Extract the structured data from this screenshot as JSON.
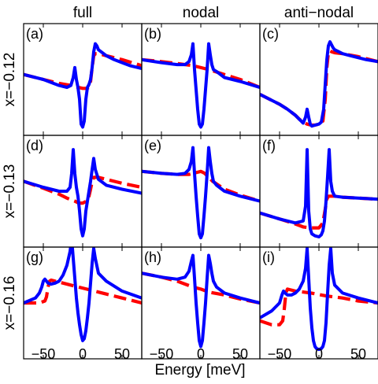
{
  "chart_data": {
    "type": "line",
    "xlabel": "Energy [meV]",
    "xlim": [
      -75,
      75
    ],
    "xticks": [
      -50,
      0,
      50
    ],
    "xtick_labels": [
      "−50",
      "0",
      "50"
    ],
    "columns": [
      "full",
      "nodal",
      "anti−nodal"
    ],
    "rows": [
      "x=−0.12",
      "x=−0.13",
      "x=−0.16"
    ],
    "series_styles": [
      {
        "key": "solid",
        "color": "#0000ff",
        "style": "solid"
      },
      {
        "key": "dashed",
        "color": "#ff0000",
        "style": "dashed"
      }
    ],
    "panels": [
      {
        "label": "(a)",
        "row": 0,
        "col": 0,
        "ylim": [
          0,
          1
        ],
        "solid": {
          "x": [
            -75,
            -50,
            -30,
            -20,
            -15,
            -12,
            -10,
            -8,
            -6,
            -4,
            -2,
            0,
            2,
            4,
            6,
            8,
            10,
            12,
            14,
            16,
            18,
            20,
            25,
            30,
            40,
            50,
            60,
            75
          ],
          "y": [
            0.55,
            0.5,
            0.44,
            0.42,
            0.44,
            0.52,
            0.62,
            0.5,
            0.42,
            0.3,
            0.05,
            0.02,
            0.08,
            0.3,
            0.42,
            0.45,
            0.5,
            0.62,
            0.78,
            0.86,
            0.84,
            0.8,
            0.77,
            0.74,
            0.7,
            0.67,
            0.64,
            0.61
          ]
        },
        "dashed": {
          "x": [
            -75,
            -50,
            -30,
            -15,
            -10,
            -5,
            0,
            5,
            8,
            10,
            12,
            14,
            16,
            20,
            30,
            50,
            75
          ],
          "y": [
            0.55,
            0.5,
            0.46,
            0.44,
            0.43,
            0.42,
            0.41,
            0.41,
            0.42,
            0.48,
            0.62,
            0.74,
            0.76,
            0.76,
            0.74,
            0.7,
            0.64
          ]
        }
      },
      {
        "label": "(b)",
        "row": 0,
        "col": 1,
        "ylim": [
          0,
          1
        ],
        "solid": {
          "x": [
            -75,
            -50,
            -30,
            -20,
            -15,
            -12,
            -10,
            -8,
            -6,
            -4,
            -2,
            0,
            2,
            4,
            6,
            8,
            10,
            12,
            14,
            16,
            20,
            30,
            50,
            75
          ],
          "y": [
            0.7,
            0.67,
            0.65,
            0.65,
            0.68,
            0.75,
            0.86,
            0.6,
            0.4,
            0.2,
            0.05,
            0.02,
            0.05,
            0.2,
            0.4,
            0.6,
            0.86,
            0.75,
            0.65,
            0.6,
            0.58,
            0.52,
            0.48,
            0.42
          ]
        },
        "dashed": {
          "x": [
            -75,
            -50,
            -30,
            -10,
            0,
            10,
            30,
            50,
            75
          ],
          "y": [
            0.7,
            0.68,
            0.66,
            0.64,
            0.62,
            0.6,
            0.55,
            0.5,
            0.42
          ]
        }
      },
      {
        "label": "(c)",
        "row": 0,
        "col": 2,
        "ylim": [
          0,
          1
        ],
        "solid": {
          "x": [
            -75,
            -50,
            -40,
            -30,
            -25,
            -20,
            -17,
            -15,
            -13,
            -11,
            -9,
            -5,
            0,
            3,
            6,
            8,
            10,
            12,
            14,
            16,
            18,
            20,
            25,
            30,
            40,
            50,
            60,
            75
          ],
          "y": [
            0.35,
            0.25,
            0.2,
            0.14,
            0.1,
            0.06,
            0.12,
            0.2,
            0.12,
            0.05,
            0.03,
            0.04,
            0.05,
            0.07,
            0.2,
            0.45,
            0.7,
            0.84,
            0.88,
            0.85,
            0.82,
            0.8,
            0.78,
            0.76,
            0.74,
            0.72,
            0.7,
            0.68
          ]
        },
        "dashed": {
          "x": [
            -75,
            -50,
            -40,
            -30,
            -25,
            -20,
            -15,
            -10,
            -5,
            0,
            5,
            8,
            10,
            12,
            14,
            16,
            20,
            30,
            50,
            75
          ],
          "y": [
            0.35,
            0.25,
            0.2,
            0.14,
            0.1,
            0.07,
            0.05,
            0.04,
            0.04,
            0.05,
            0.08,
            0.3,
            0.62,
            0.77,
            0.79,
            0.78,
            0.77,
            0.76,
            0.73,
            0.68
          ]
        }
      },
      {
        "label": "(d)",
        "row": 1,
        "col": 0,
        "ylim": [
          0,
          1
        ],
        "solid": {
          "x": [
            -75,
            -50,
            -30,
            -20,
            -16,
            -14,
            -12,
            -10,
            -8,
            -6,
            -4,
            -2,
            0,
            2,
            4,
            6,
            8,
            10,
            12,
            14,
            16,
            20,
            30,
            50,
            75
          ],
          "y": [
            0.6,
            0.54,
            0.5,
            0.5,
            0.54,
            0.68,
            0.92,
            0.68,
            0.54,
            0.45,
            0.3,
            0.12,
            0.05,
            0.12,
            0.3,
            0.4,
            0.5,
            0.6,
            0.72,
            0.83,
            0.72,
            0.62,
            0.56,
            0.52,
            0.48
          ]
        },
        "dashed": {
          "x": [
            -75,
            -50,
            -30,
            -20,
            -10,
            -5,
            0,
            5,
            8,
            10,
            12,
            14,
            20,
            30,
            50,
            75
          ],
          "y": [
            0.6,
            0.53,
            0.47,
            0.43,
            0.4,
            0.38,
            0.38,
            0.4,
            0.45,
            0.52,
            0.6,
            0.64,
            0.64,
            0.62,
            0.58,
            0.54
          ]
        }
      },
      {
        "label": "(e)",
        "row": 1,
        "col": 1,
        "ylim": [
          0,
          1
        ],
        "solid": {
          "x": [
            -75,
            -50,
            -30,
            -20,
            -15,
            -12,
            -10,
            -8,
            -6,
            -4,
            -2,
            0,
            2,
            4,
            6,
            8,
            10,
            12,
            14,
            16,
            20,
            30,
            50,
            75
          ],
          "y": [
            0.7,
            0.68,
            0.67,
            0.68,
            0.72,
            0.8,
            0.94,
            0.68,
            0.45,
            0.25,
            0.07,
            0.03,
            0.07,
            0.25,
            0.45,
            0.68,
            0.94,
            0.8,
            0.68,
            0.6,
            0.56,
            0.5,
            0.45,
            0.4
          ]
        },
        "dashed": {
          "x": [
            -75,
            -50,
            -30,
            -15,
            -5,
            0,
            5,
            15,
            30,
            50,
            75
          ],
          "y": [
            0.7,
            0.68,
            0.67,
            0.67,
            0.69,
            0.7,
            0.68,
            0.6,
            0.52,
            0.46,
            0.4
          ]
        }
      },
      {
        "label": "(f)",
        "row": 1,
        "col": 2,
        "ylim": [
          0,
          1
        ],
        "solid": {
          "x": [
            -75,
            -50,
            -30,
            -20,
            -17,
            -15,
            -13,
            -11,
            -9,
            -5,
            0,
            3,
            5,
            7,
            9,
            11,
            13,
            15,
            17,
            20,
            30,
            50,
            75
          ],
          "y": [
            0.28,
            0.22,
            0.18,
            0.2,
            0.35,
            0.92,
            0.3,
            0.12,
            0.07,
            0.05,
            0.04,
            0.06,
            0.1,
            0.2,
            0.4,
            0.65,
            0.92,
            0.6,
            0.5,
            0.45,
            0.44,
            0.43,
            0.42
          ]
        },
        "dashed": {
          "x": [
            -75,
            -50,
            -30,
            -20,
            -10,
            0,
            5,
            8,
            10,
            12,
            14,
            20,
            30,
            50,
            75
          ],
          "y": [
            0.28,
            0.22,
            0.17,
            0.14,
            0.13,
            0.13,
            0.18,
            0.32,
            0.42,
            0.45,
            0.45,
            0.45,
            0.44,
            0.43,
            0.42
          ]
        }
      },
      {
        "label": "(g)",
        "row": 2,
        "col": 0,
        "ylim": [
          0,
          1
        ],
        "solid": {
          "x": [
            -75,
            -60,
            -55,
            -52,
            -50,
            -48,
            -46,
            -44,
            -40,
            -35,
            -30,
            -25,
            -20,
            -16,
            -14,
            -12,
            -10,
            -8,
            -6,
            -4,
            -2,
            0,
            2,
            4,
            6,
            8,
            10,
            12,
            14,
            16,
            20,
            30,
            50,
            75
          ],
          "y": [
            0.5,
            0.55,
            0.6,
            0.66,
            0.72,
            0.74,
            0.72,
            0.7,
            0.69,
            0.7,
            0.72,
            0.78,
            0.88,
            1.02,
            1.15,
            0.95,
            0.75,
            0.55,
            0.4,
            0.28,
            0.18,
            0.12,
            0.14,
            0.22,
            0.35,
            0.5,
            0.7,
            0.9,
            1.05,
            0.95,
            0.8,
            0.72,
            0.62,
            0.55
          ]
        },
        "dashed": {
          "x": [
            -75,
            -55,
            -48,
            -46,
            -44,
            -42,
            -40,
            -30,
            -10,
            10,
            30,
            50,
            75
          ],
          "y": [
            0.5,
            0.5,
            0.52,
            0.56,
            0.66,
            0.72,
            0.73,
            0.71,
            0.67,
            0.63,
            0.59,
            0.55,
            0.5
          ]
        }
      },
      {
        "label": "(h)",
        "row": 2,
        "col": 1,
        "ylim": [
          0,
          1
        ],
        "solid": {
          "x": [
            -75,
            -50,
            -30,
            -20,
            -15,
            -12,
            -10,
            -8,
            -6,
            -4,
            -2,
            0,
            2,
            4,
            6,
            8,
            10,
            12,
            14,
            16,
            20,
            30,
            50,
            75
          ],
          "y": [
            0.8,
            0.76,
            0.74,
            0.76,
            0.82,
            0.92,
            0.98,
            0.75,
            0.5,
            0.3,
            0.12,
            0.06,
            0.12,
            0.3,
            0.5,
            0.75,
            0.98,
            0.9,
            0.8,
            0.72,
            0.66,
            0.6,
            0.55,
            0.5
          ]
        },
        "dashed": {
          "x": [
            -75,
            -50,
            -30,
            -10,
            0,
            10,
            30,
            50,
            75
          ],
          "y": [
            0.8,
            0.76,
            0.72,
            0.66,
            0.64,
            0.61,
            0.58,
            0.54,
            0.5
          ]
        }
      },
      {
        "label": "(i)",
        "row": 2,
        "col": 2,
        "ylim": [
          0,
          1
        ],
        "solid": {
          "x": [
            -75,
            -60,
            -50,
            -47,
            -45,
            -43,
            -40,
            -35,
            -30,
            -25,
            -20,
            -17,
            -15,
            -13,
            -11,
            -9,
            -7,
            -5,
            -3,
            0,
            3,
            5,
            7,
            9,
            11,
            13,
            15,
            17,
            20,
            30,
            50,
            75
          ],
          "y": [
            0.35,
            0.42,
            0.5,
            0.58,
            0.62,
            0.6,
            0.58,
            0.58,
            0.6,
            0.64,
            0.72,
            0.85,
            1.05,
            0.75,
            0.45,
            0.25,
            0.12,
            0.06,
            0.04,
            0.03,
            0.04,
            0.06,
            0.12,
            0.3,
            0.6,
            0.88,
            1.05,
            0.8,
            0.68,
            0.6,
            0.55,
            0.5
          ]
        },
        "dashed": {
          "x": [
            -75,
            -60,
            -50,
            -46,
            -44,
            -42,
            -40,
            -30,
            -10,
            10,
            30,
            50,
            75
          ],
          "y": [
            0.32,
            0.28,
            0.28,
            0.32,
            0.44,
            0.6,
            0.64,
            0.62,
            0.6,
            0.57,
            0.55,
            0.52,
            0.5
          ]
        }
      }
    ]
  }
}
